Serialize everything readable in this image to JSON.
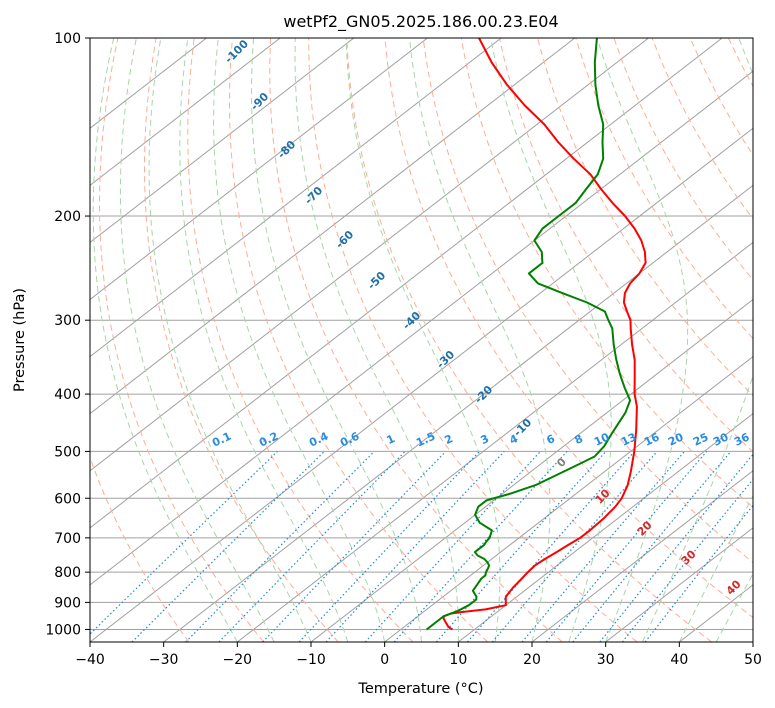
{
  "chart_data": {
    "type": "line",
    "title": "wetPf2_GN05.2025.186.00.23.E04",
    "xlabel": "Temperature (°C)",
    "ylabel": "Pressure (hPa)",
    "xlim": [
      -40,
      50
    ],
    "ylim": [
      1050,
      100
    ],
    "y_scale": "log",
    "grid": true,
    "x_ticks": [
      "−40",
      "−30",
      "−20",
      "−10",
      "0",
      "10",
      "20",
      "30",
      "40",
      "50"
    ],
    "y_ticks": [
      "100",
      "200",
      "300",
      "400",
      "500",
      "600",
      "700",
      "800",
      "900",
      "1000"
    ],
    "series": [
      {
        "color": "#ff0000",
        "points": [
          [
            1000,
            7
          ],
          [
            990,
            6
          ],
          [
            975,
            5
          ],
          [
            960,
            4
          ],
          [
            950,
            3.5
          ],
          [
            940,
            4
          ],
          [
            935,
            5
          ],
          [
            925,
            8
          ],
          [
            910,
            10
          ],
          [
            900,
            9.5
          ],
          [
            880,
            8.5
          ],
          [
            850,
            7.9
          ],
          [
            820,
            7.5
          ],
          [
            800,
            7.2
          ],
          [
            780,
            7.0
          ],
          [
            760,
            7.2
          ],
          [
            740,
            7.6
          ],
          [
            720,
            7.9
          ],
          [
            700,
            8.3
          ],
          [
            680,
            8.3
          ],
          [
            650,
            8.1
          ],
          [
            620,
            7.6
          ],
          [
            600,
            7.0
          ],
          [
            570,
            5.5
          ],
          [
            540,
            3.5
          ],
          [
            500,
            0.5
          ],
          [
            460,
            -3
          ],
          [
            420,
            -7
          ],
          [
            400,
            -9.5
          ],
          [
            370,
            -13
          ],
          [
            350,
            -15.5
          ],
          [
            330,
            -18.5
          ],
          [
            310,
            -21.5
          ],
          [
            300,
            -23
          ],
          [
            290,
            -25
          ],
          [
            280,
            -27
          ],
          [
            270,
            -28.5
          ],
          [
            260,
            -29.5
          ],
          [
            250,
            -30
          ],
          [
            240,
            -31
          ],
          [
            230,
            -33
          ],
          [
            220,
            -35.5
          ],
          [
            210,
            -38.5
          ],
          [
            200,
            -42
          ],
          [
            190,
            -46
          ],
          [
            180,
            -50
          ],
          [
            170,
            -54
          ],
          [
            160,
            -59
          ],
          [
            150,
            -64
          ],
          [
            140,
            -69
          ],
          [
            130,
            -75
          ],
          [
            120,
            -81
          ],
          [
            110,
            -87
          ],
          [
            100,
            -93
          ]
        ]
      },
      {
        "color": "#008000",
        "points": [
          [
            1000,
            3.5
          ],
          [
            990,
            3.5
          ],
          [
            970,
            3.5
          ],
          [
            950,
            3.5
          ],
          [
            940,
            4
          ],
          [
            930,
            4.5
          ],
          [
            910,
            5
          ],
          [
            890,
            5
          ],
          [
            880,
            4.5
          ],
          [
            860,
            3
          ],
          [
            840,
            2.5
          ],
          [
            820,
            2
          ],
          [
            810,
            2
          ],
          [
            800,
            1.5
          ],
          [
            790,
            1.2
          ],
          [
            780,
            0.8
          ],
          [
            770,
            0
          ],
          [
            760,
            -1
          ],
          [
            750,
            -2.5
          ],
          [
            740,
            -3.5
          ],
          [
            720,
            -3.5
          ],
          [
            710,
            -3.8
          ],
          [
            700,
            -4
          ],
          [
            680,
            -5
          ],
          [
            660,
            -8
          ],
          [
            640,
            -10
          ],
          [
            620,
            -11
          ],
          [
            605,
            -11
          ],
          [
            590,
            -9
          ],
          [
            570,
            -7
          ],
          [
            550,
            -6
          ],
          [
            530,
            -5
          ],
          [
            510,
            -4
          ],
          [
            490,
            -4.5
          ],
          [
            470,
            -5.5
          ],
          [
            450,
            -6.5
          ],
          [
            430,
            -7.5
          ],
          [
            410,
            -9
          ],
          [
            390,
            -12
          ],
          [
            370,
            -15
          ],
          [
            350,
            -18
          ],
          [
            330,
            -21
          ],
          [
            310,
            -24
          ],
          [
            300,
            -26
          ],
          [
            290,
            -28
          ],
          [
            280,
            -32
          ],
          [
            270,
            -37
          ],
          [
            260,
            -42
          ],
          [
            250,
            -45
          ],
          [
            240,
            -45
          ],
          [
            230,
            -47
          ],
          [
            220,
            -50
          ],
          [
            210,
            -51
          ],
          [
            200,
            -51
          ],
          [
            190,
            -51
          ],
          [
            180,
            -52
          ],
          [
            170,
            -53
          ],
          [
            160,
            -55
          ],
          [
            150,
            -58
          ],
          [
            140,
            -61
          ],
          [
            130,
            -65
          ],
          [
            120,
            -69
          ],
          [
            110,
            -73
          ],
          [
            100,
            -77
          ]
        ]
      }
    ],
    "dry_adiabat_labels": [
      "-100",
      "-90",
      "-80",
      "-70",
      "-60",
      "-50",
      "-40",
      "-30",
      "-20",
      "-10"
    ],
    "mixing_ratio_labels": [
      "0.1",
      "0.2",
      "0.4",
      "0.6",
      "1",
      "1.5",
      "2",
      "3",
      "4",
      "6",
      "8",
      "10",
      "13",
      "16",
      "20",
      "25",
      "30",
      "36"
    ],
    "moist_adiabat_labels": [
      "0",
      "10",
      "20",
      "30",
      "40"
    ],
    "colors": {
      "temperature": "#ff0000",
      "dewpoint": "#008000",
      "isotherm": "#a0a0a0",
      "dry_adiabat": "#ffad94",
      "moist_adiabat": "#a8d6a8",
      "mixing_ratio": "#1f8ad8",
      "dry_label": "#1f6fa8",
      "mixing_label": "#2a8cdf",
      "moist_label": "#d62728",
      "moist_zero_label": "#808080"
    }
  }
}
